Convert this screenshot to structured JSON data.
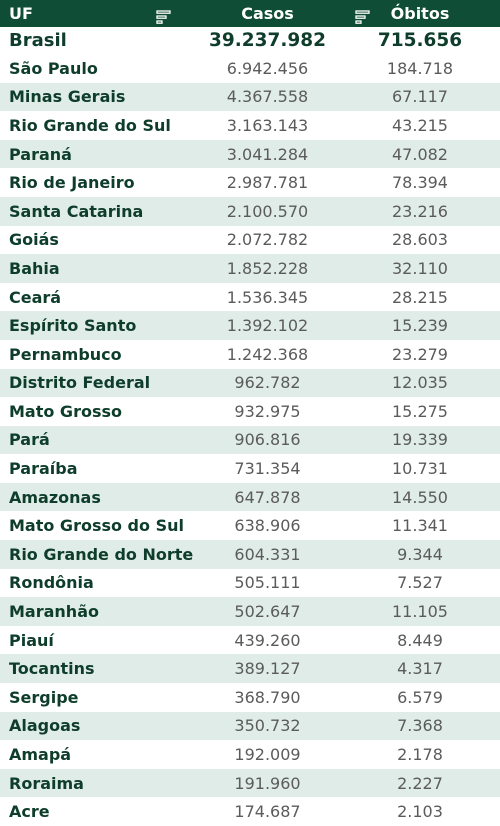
{
  "header": {
    "uf_label": "UF",
    "casos_label": "Casos",
    "obitos_label": "Óbitos"
  },
  "total": {
    "uf": "Brasil",
    "casos": "39.237.982",
    "obitos": "715.656"
  },
  "rows": [
    {
      "uf": "São Paulo",
      "casos": "6.942.456",
      "obitos": "184.718"
    },
    {
      "uf": "Minas Gerais",
      "casos": "4.367.558",
      "obitos": "67.117"
    },
    {
      "uf": "Rio Grande do Sul",
      "casos": "3.163.143",
      "obitos": "43.215"
    },
    {
      "uf": "Paraná",
      "casos": "3.041.284",
      "obitos": "47.082"
    },
    {
      "uf": "Rio de Janeiro",
      "casos": "2.987.781",
      "obitos": "78.394"
    },
    {
      "uf": "Santa Catarina",
      "casos": "2.100.570",
      "obitos": "23.216"
    },
    {
      "uf": "Goiás",
      "casos": "2.072.782",
      "obitos": "28.603"
    },
    {
      "uf": "Bahia",
      "casos": "1.852.228",
      "obitos": "32.110"
    },
    {
      "uf": "Ceará",
      "casos": "1.536.345",
      "obitos": "28.215"
    },
    {
      "uf": "Espírito Santo",
      "casos": "1.392.102",
      "obitos": "15.239"
    },
    {
      "uf": "Pernambuco",
      "casos": "1.242.368",
      "obitos": "23.279"
    },
    {
      "uf": "Distrito Federal",
      "casos": "962.782",
      "obitos": "12.035"
    },
    {
      "uf": "Mato Grosso",
      "casos": "932.975",
      "obitos": "15.275"
    },
    {
      "uf": "Pará",
      "casos": "906.816",
      "obitos": "19.339"
    },
    {
      "uf": "Paraíba",
      "casos": "731.354",
      "obitos": "10.731"
    },
    {
      "uf": "Amazonas",
      "casos": "647.878",
      "obitos": "14.550"
    },
    {
      "uf": "Mato Grosso do Sul",
      "casos": "638.906",
      "obitos": "11.341"
    },
    {
      "uf": "Rio Grande do Norte",
      "casos": "604.331",
      "obitos": "9.344"
    },
    {
      "uf": "Rondônia",
      "casos": "505.111",
      "obitos": "7.527"
    },
    {
      "uf": "Maranhão",
      "casos": "502.647",
      "obitos": "11.105"
    },
    {
      "uf": "Piauí",
      "casos": "439.260",
      "obitos": "8.449"
    },
    {
      "uf": "Tocantins",
      "casos": "389.127",
      "obitos": "4.317"
    },
    {
      "uf": "Sergipe",
      "casos": "368.790",
      "obitos": "6.579"
    },
    {
      "uf": "Alagoas",
      "casos": "350.732",
      "obitos": "7.368"
    },
    {
      "uf": "Amapá",
      "casos": "192.009",
      "obitos": "2.178"
    },
    {
      "uf": "Roraima",
      "casos": "191.960",
      "obitos": "2.227"
    },
    {
      "uf": "Acre",
      "casos": "174.687",
      "obitos": "2.103"
    }
  ],
  "colors": {
    "header_bg": "#0f4d36",
    "alt_row_bg": "#dfece8",
    "label_text": "#0f3d2c",
    "value_text": "#5b5b5b"
  },
  "icons": {
    "sort": "sort-icon"
  }
}
